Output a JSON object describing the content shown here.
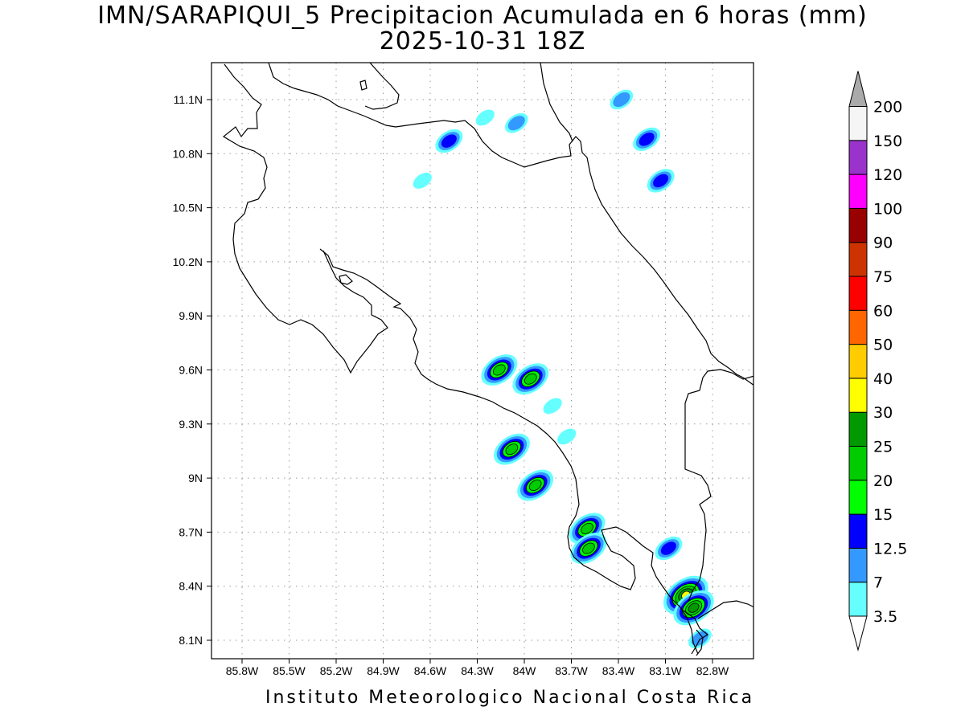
{
  "title": {
    "line1": "IMN/SARAPIQUI_5 Precipitacion Acumulada en 6 horas (mm)",
    "line2": "2025-10-31 18Z"
  },
  "footer": "Instituto Meteorologico Nacional Costa Rica",
  "map": {
    "lon_labels": [
      "85.8W",
      "85.5W",
      "85.2W",
      "84.9W",
      "84.6W",
      "84.3W",
      "84W",
      "83.7W",
      "83.4W",
      "83.1W",
      "82.8W"
    ],
    "lat_labels": [
      "11.1N",
      "10.8N",
      "10.5N",
      "10.2N",
      "9.9N",
      "9.6N",
      "9.3N",
      "9N",
      "8.7N",
      "8.4N",
      "8.1N"
    ],
    "grid": true
  },
  "colorbar": {
    "levels": [
      "3.5",
      "7",
      "12.5",
      "15",
      "20",
      "25",
      "30",
      "40",
      "50",
      "60",
      "75",
      "90",
      "100",
      "120",
      "150",
      "200"
    ],
    "colors": [
      "#66ffff",
      "#3399ff",
      "#0000ff",
      "#00ff00",
      "#00cc00",
      "#009900",
      "#ffff00",
      "#ffcc00",
      "#ff6600",
      "#ff0000",
      "#cc3300",
      "#990000",
      "#ff00ff",
      "#9933cc",
      "#f5f5f5",
      "#aaaaaa"
    ]
  },
  "precip_cells": [
    {
      "lon": -84.48,
      "lat": 10.87,
      "max": "12.5"
    },
    {
      "lon": -84.05,
      "lat": 10.97,
      "max": "7"
    },
    {
      "lon": -84.25,
      "lat": 11.0,
      "max": "3.5"
    },
    {
      "lon": -84.65,
      "lat": 10.65,
      "max": "3.5"
    },
    {
      "lon": -83.22,
      "lat": 10.88,
      "max": "12.5"
    },
    {
      "lon": -83.13,
      "lat": 10.65,
      "max": "12.5"
    },
    {
      "lon": -83.38,
      "lat": 11.1,
      "max": "7"
    },
    {
      "lon": -84.16,
      "lat": 9.6,
      "max": "20"
    },
    {
      "lon": -83.96,
      "lat": 9.55,
      "max": "20"
    },
    {
      "lon": -84.08,
      "lat": 9.16,
      "max": "20"
    },
    {
      "lon": -83.93,
      "lat": 8.96,
      "max": "20"
    },
    {
      "lon": -83.6,
      "lat": 8.72,
      "max": "20"
    },
    {
      "lon": -83.59,
      "lat": 8.61,
      "max": "20"
    },
    {
      "lon": -83.08,
      "lat": 8.61,
      "max": "12.5"
    },
    {
      "lon": -82.97,
      "lat": 8.35,
      "max": "30"
    },
    {
      "lon": -82.92,
      "lat": 8.28,
      "max": "25"
    },
    {
      "lon": -82.88,
      "lat": 8.11,
      "max": "7"
    },
    {
      "lon": -83.82,
      "lat": 9.4,
      "max": "3.5"
    },
    {
      "lon": -83.73,
      "lat": 9.23,
      "max": "3.5"
    }
  ]
}
